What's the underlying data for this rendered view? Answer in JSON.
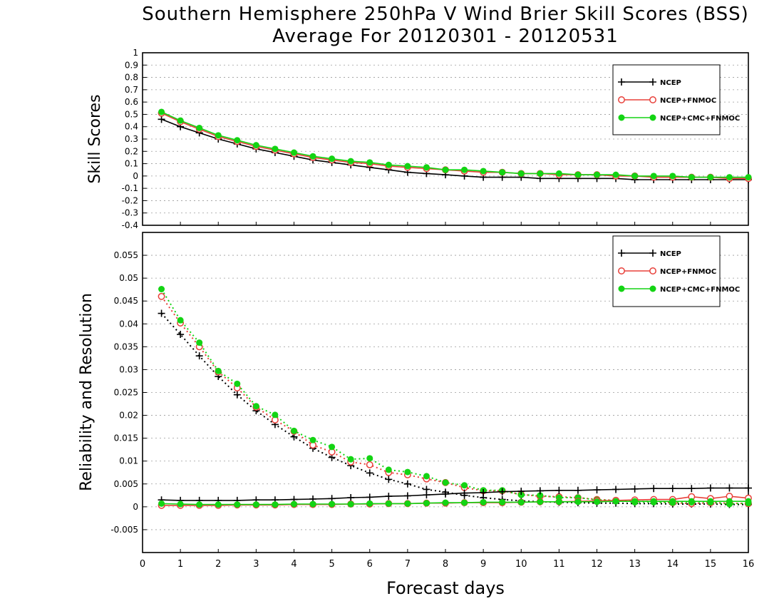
{
  "title": "Southern Hemisphere 250hPa V Wind Brier Skill Scores (BSS)",
  "subtitle": "Average For 20120301 - 20120531",
  "xlabel": "Forecast days",
  "colors": {
    "NCEP": "#000000",
    "NCEP+FNMOC": "#e8403a",
    "NCEP+CMC+FNMOC": "#13d413"
  },
  "chart_data": [
    {
      "type": "line",
      "ylabel": "Skill Scores",
      "xlim": [
        0,
        16
      ],
      "ylim": [
        -0.4,
        1
      ],
      "xticks": [
        "0",
        "1",
        "2",
        "3",
        "4",
        "5",
        "6",
        "7",
        "8",
        "9",
        "10",
        "11",
        "12",
        "13",
        "14",
        "15",
        "16"
      ],
      "yticks": [
        "-0.4",
        "-0.3",
        "-0.2",
        "-0.1",
        "0",
        "0.1",
        "0.2",
        "0.3",
        "0.4",
        "0.5",
        "0.6",
        "0.7",
        "0.8",
        "0.9",
        "1"
      ],
      "legend_position": "top-right",
      "x": [
        0.5,
        1,
        1.5,
        2,
        2.5,
        3,
        3.5,
        4,
        4.5,
        5,
        5.5,
        6,
        6.5,
        7,
        7.5,
        8,
        8.5,
        9,
        9.5,
        10,
        10.5,
        11,
        11.5,
        12,
        12.5,
        13,
        13.5,
        14,
        14.5,
        15,
        15.5,
        16
      ],
      "series": [
        {
          "name": "NCEP",
          "style": "solid",
          "marker": "plus",
          "values": [
            0.46,
            0.4,
            0.35,
            0.3,
            0.26,
            0.22,
            0.19,
            0.16,
            0.13,
            0.11,
            0.09,
            0.07,
            0.05,
            0.03,
            0.02,
            0.01,
            0.0,
            -0.01,
            -0.01,
            -0.01,
            -0.02,
            -0.02,
            -0.02,
            -0.02,
            -0.02,
            -0.03,
            -0.03,
            -0.03,
            -0.03,
            -0.03,
            -0.03,
            -0.03
          ]
        },
        {
          "name": "NCEP+FNMOC",
          "style": "solid",
          "marker": "open-circle",
          "values": [
            0.51,
            0.44,
            0.38,
            0.32,
            0.28,
            0.24,
            0.21,
            0.18,
            0.15,
            0.13,
            0.11,
            0.1,
            0.08,
            0.07,
            0.06,
            0.05,
            0.04,
            0.03,
            0.03,
            0.02,
            0.02,
            0.01,
            0.01,
            0.01,
            0.0,
            0.0,
            -0.01,
            -0.01,
            -0.01,
            -0.01,
            -0.02,
            -0.02
          ]
        },
        {
          "name": "NCEP+CMC+FNMOC",
          "style": "solid",
          "marker": "filled-circle",
          "values": [
            0.52,
            0.45,
            0.39,
            0.33,
            0.29,
            0.25,
            0.22,
            0.19,
            0.16,
            0.14,
            0.12,
            0.11,
            0.09,
            0.08,
            0.07,
            0.05,
            0.05,
            0.04,
            0.03,
            0.02,
            0.02,
            0.02,
            0.01,
            0.01,
            0.01,
            0.0,
            0.0,
            0.0,
            -0.01,
            -0.01,
            -0.01,
            -0.01
          ]
        }
      ]
    },
    {
      "type": "line",
      "ylabel": "Reliability and Resolution",
      "xlim": [
        0,
        16
      ],
      "ylim": [
        -0.01,
        0.06
      ],
      "xticks": [
        "0",
        "1",
        "2",
        "3",
        "4",
        "5",
        "6",
        "7",
        "8",
        "9",
        "10",
        "11",
        "12",
        "13",
        "14",
        "15",
        "16"
      ],
      "yticks": [
        "-0.005",
        "0",
        "0.005",
        "0.01",
        "0.015",
        "0.02",
        "0.025",
        "0.03",
        "0.035",
        "0.04",
        "0.045",
        "0.05",
        "0.055"
      ],
      "legend_position": "top-right",
      "x": [
        0.5,
        1,
        1.5,
        2,
        2.5,
        3,
        3.5,
        4,
        4.5,
        5,
        5.5,
        6,
        6.5,
        7,
        7.5,
        8,
        8.5,
        9,
        9.5,
        10,
        10.5,
        11,
        11.5,
        12,
        12.5,
        13,
        13.5,
        14,
        14.5,
        15,
        15.5,
        16
      ],
      "series": [
        {
          "name": "NCEP",
          "group": "resolution",
          "style": "dotted",
          "marker": "plus",
          "values": [
            0.0423,
            0.0377,
            0.033,
            0.0285,
            0.0245,
            0.021,
            0.018,
            0.0153,
            0.0128,
            0.0108,
            0.009,
            0.0074,
            0.006,
            0.005,
            0.0038,
            0.0032,
            0.0025,
            0.002,
            0.0016,
            0.0013,
            0.0011,
            0.001,
            0.0009,
            0.0008,
            0.0008,
            0.0007,
            0.0007,
            0.0006,
            0.0006,
            0.0006,
            0.0005,
            0.0005
          ]
        },
        {
          "name": "NCEP+FNMOC",
          "group": "resolution",
          "style": "dotted",
          "marker": "open-circle",
          "values": [
            0.046,
            0.0402,
            0.035,
            0.0295,
            0.026,
            0.0218,
            0.019,
            0.0165,
            0.0135,
            0.012,
            0.0098,
            0.0092,
            0.0075,
            0.007,
            0.0061,
            0.0053,
            0.0042,
            0.0035,
            0.0035,
            0.0027,
            0.0023,
            0.0022,
            0.002,
            0.0016,
            0.0014,
            0.0012,
            0.0012,
            0.0009,
            0.0007,
            0.0009,
            0.0008,
            0.0007
          ]
        },
        {
          "name": "NCEP+CMC+FNMOC",
          "group": "resolution",
          "style": "dotted",
          "marker": "filled-circle",
          "values": [
            0.0476,
            0.0408,
            0.0359,
            0.0297,
            0.0269,
            0.022,
            0.0201,
            0.0166,
            0.0146,
            0.0131,
            0.0104,
            0.0106,
            0.0081,
            0.0076,
            0.0067,
            0.0053,
            0.0047,
            0.0036,
            0.0036,
            0.0026,
            0.0025,
            0.002,
            0.002,
            0.0015,
            0.0014,
            0.001,
            0.001,
            0.0009,
            0.001,
            0.001,
            0.0006,
            0.0008
          ]
        },
        {
          "name": "NCEP",
          "group": "reliability",
          "style": "solid",
          "marker": "plus",
          "values": [
            0.0015,
            0.0014,
            0.0014,
            0.0014,
            0.0014,
            0.0015,
            0.0015,
            0.0016,
            0.0017,
            0.0018,
            0.002,
            0.0021,
            0.0023,
            0.0024,
            0.0026,
            0.0028,
            0.003,
            0.0031,
            0.0033,
            0.0034,
            0.0035,
            0.0036,
            0.0036,
            0.0037,
            0.0038,
            0.0039,
            0.004,
            0.004,
            0.004,
            0.0041,
            0.0041,
            0.0041
          ]
        },
        {
          "name": "NCEP+FNMOC",
          "group": "reliability",
          "style": "solid",
          "marker": "open-circle",
          "values": [
            0.0003,
            0.0003,
            0.0003,
            0.0003,
            0.0004,
            0.0004,
            0.0004,
            0.0005,
            0.0005,
            0.0005,
            0.0006,
            0.0006,
            0.0007,
            0.0007,
            0.0008,
            0.0008,
            0.0009,
            0.0009,
            0.0009,
            0.001,
            0.0011,
            0.0011,
            0.0012,
            0.0013,
            0.0014,
            0.0015,
            0.0016,
            0.0016,
            0.0022,
            0.0018,
            0.0023,
            0.0019
          ]
        },
        {
          "name": "NCEP+CMC+FNMOC",
          "group": "reliability",
          "style": "solid",
          "marker": "filled-circle",
          "values": [
            0.0007,
            0.0006,
            0.0005,
            0.0005,
            0.0005,
            0.0005,
            0.0005,
            0.0006,
            0.0006,
            0.0006,
            0.0006,
            0.0007,
            0.0007,
            0.0007,
            0.0008,
            0.0009,
            0.0009,
            0.001,
            0.001,
            0.001,
            0.0011,
            0.0011,
            0.0011,
            0.0011,
            0.0012,
            0.0012,
            0.0012,
            0.0012,
            0.0012,
            0.0012,
            0.0012,
            0.0012
          ]
        }
      ]
    }
  ]
}
